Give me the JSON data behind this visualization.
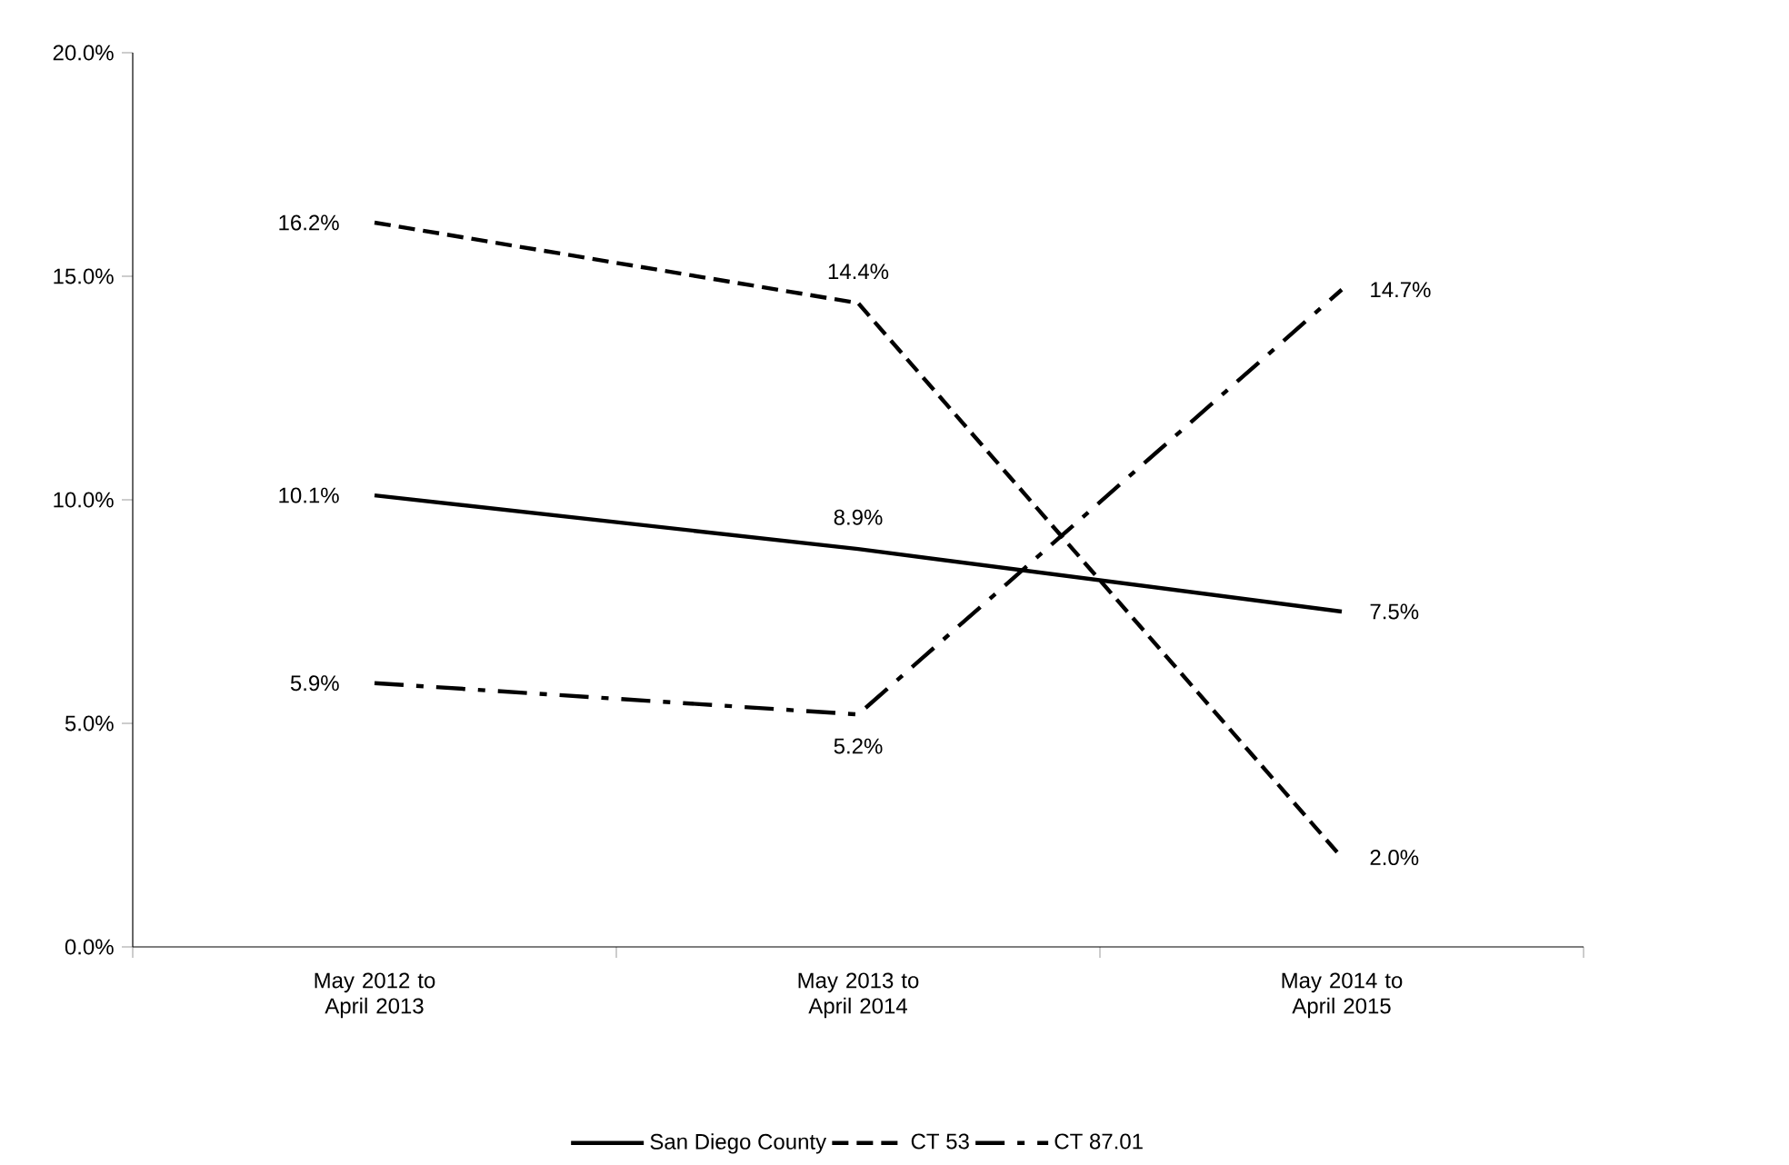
{
  "chart_data": {
    "type": "line",
    "categories": [
      "May 2012 to April 2013",
      "May 2013 to April 2014",
      "May 2014 to April 2015"
    ],
    "ylim": [
      0,
      20
    ],
    "yticks": [
      {
        "value": 0,
        "label": "0.0%"
      },
      {
        "value": 5,
        "label": "5.0%"
      },
      {
        "value": 10,
        "label": "10.0%"
      },
      {
        "value": 15,
        "label": "15.0%"
      },
      {
        "value": 20,
        "label": "20.0%"
      }
    ],
    "legend": "bottom",
    "series": [
      {
        "name": "San Diego County",
        "color": "#000000",
        "line_style": "solid",
        "values": [
          10.1,
          8.9,
          7.5
        ],
        "value_labels": [
          "10.1%",
          "8.9%",
          "7.5%"
        ]
      },
      {
        "name": "CT 53",
        "color": "#000000",
        "line_style": "dashed",
        "values": [
          16.2,
          14.4,
          2.0
        ],
        "value_labels": [
          "16.2%",
          "14.4%",
          "2.0%"
        ]
      },
      {
        "name": "CT 87.01",
        "color": "#000000",
        "line_style": "dashdot",
        "values": [
          5.9,
          5.2,
          14.7
        ],
        "value_labels": [
          "5.9%",
          "5.2%",
          "14.7%"
        ]
      }
    ]
  }
}
